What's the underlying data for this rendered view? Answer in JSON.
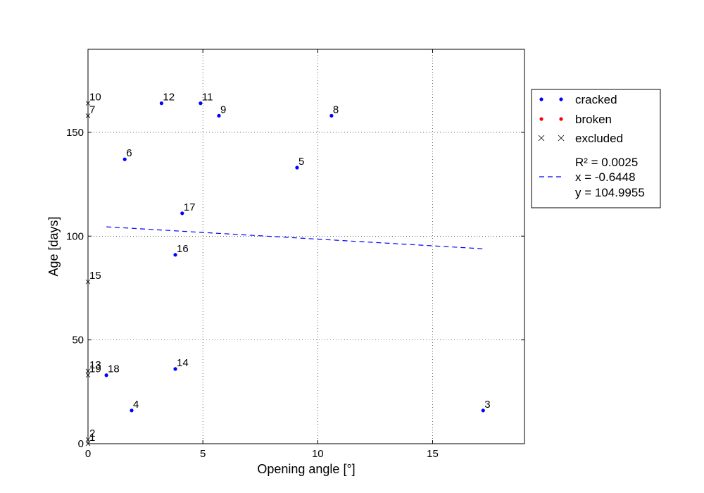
{
  "chart_data": {
    "type": "scatter",
    "xlabel": "Opening angle [°]",
    "ylabel": "Age [days]",
    "xlim": [
      0,
      19
    ],
    "ylim": [
      0,
      190
    ],
    "xticks": [
      0,
      5,
      10,
      15
    ],
    "yticks": [
      0,
      50,
      100,
      150
    ],
    "grid": true,
    "legend_position": "right",
    "series": [
      {
        "name": "cracked",
        "marker": "dot",
        "color": "#0000ff",
        "points": [
          {
            "label": "3",
            "x": 17.2,
            "y": 16
          },
          {
            "label": "4",
            "x": 1.9,
            "y": 16
          },
          {
            "label": "5",
            "x": 9.1,
            "y": 133
          },
          {
            "label": "6",
            "x": 1.6,
            "y": 137
          },
          {
            "label": "8",
            "x": 10.6,
            "y": 158
          },
          {
            "label": "9",
            "x": 5.7,
            "y": 158
          },
          {
            "label": "11",
            "x": 4.9,
            "y": 164
          },
          {
            "label": "12",
            "x": 3.2,
            "y": 164
          },
          {
            "label": "14",
            "x": 3.8,
            "y": 36
          },
          {
            "label": "16",
            "x": 3.8,
            "y": 91
          },
          {
            "label": "17",
            "x": 4.1,
            "y": 111
          },
          {
            "label": "18",
            "x": 0.8,
            "y": 33
          }
        ]
      },
      {
        "name": "broken",
        "marker": "dot",
        "color": "#ff0000",
        "points": []
      },
      {
        "name": "excluded",
        "marker": "x",
        "color": "#000000",
        "points": [
          {
            "label": "1",
            "x": 0,
            "y": 0
          },
          {
            "label": "2",
            "x": 0,
            "y": 2
          },
          {
            "label": "7",
            "x": 0,
            "y": 158
          },
          {
            "label": "10",
            "x": 0,
            "y": 164
          },
          {
            "label": "13",
            "x": 0,
            "y": 35
          },
          {
            "label": "15",
            "x": 0,
            "y": 78
          },
          {
            "label": "19",
            "x": 0,
            "y": 33
          }
        ]
      }
    ],
    "fit": {
      "style": "dashed",
      "color": "#0000ff",
      "x_range": [
        0.8,
        17.2
      ],
      "slope": -0.6448,
      "intercept": 104.9955,
      "legend_lines": [
        "R² = 0.0025",
        "x = -0.6448",
        "y = 104.9955"
      ]
    }
  }
}
